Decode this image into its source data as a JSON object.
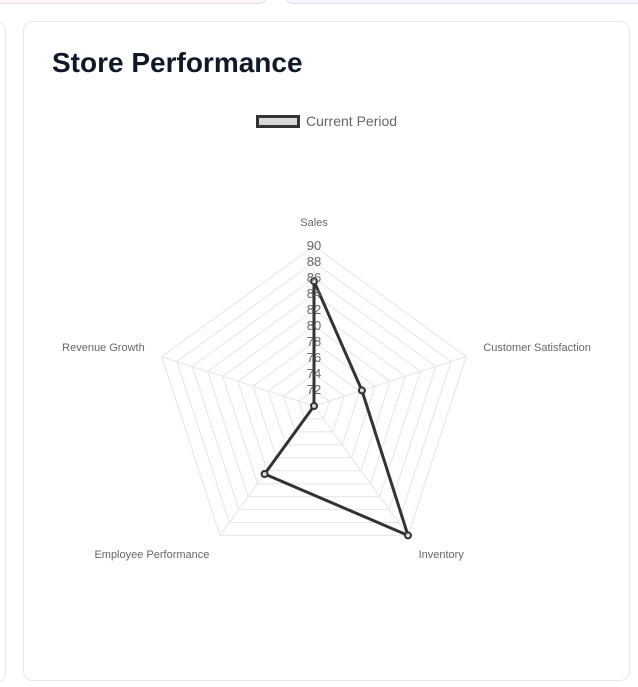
{
  "card": {
    "title": "Store Performance"
  },
  "legend": {
    "label": "Current Period",
    "fill_color": "#d8d8d8",
    "border_color": "#333333",
    "placement": "top"
  },
  "chart_data": {
    "type": "radar",
    "title": "Store Performance",
    "axes": [
      "Sales",
      "Customer Satisfaction",
      "Inventory",
      "Employee Performance",
      "Revenue Growth"
    ],
    "ticks": [
      "72",
      "74",
      "76",
      "78",
      "80",
      "82",
      "84",
      "86",
      "88",
      "90"
    ],
    "range": [
      70,
      90
    ],
    "grid": true,
    "series": [
      {
        "name": "Current Period",
        "values": [
          85.6,
          76.3,
          90,
          80.5,
          70
        ],
        "color": "#333333",
        "fill": "#d8d8d8"
      }
    ]
  }
}
